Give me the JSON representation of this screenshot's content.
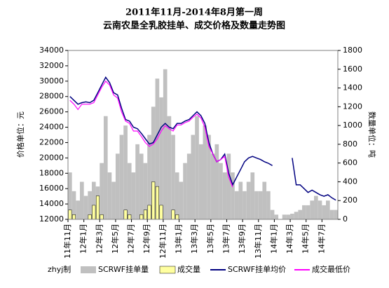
{
  "chart_data": {
    "type": "combo",
    "title": "2011年11月-2014年8月第一周",
    "subtitle": "云南农垦全乳胶挂单、成交价格及数量走势图",
    "y_label": "价格单位：元",
    "y2_label": "数量单位：吨",
    "credit": "zhyj制",
    "categories": [
      "11年11月",
      null,
      null,
      null,
      "12年1月",
      null,
      null,
      null,
      "12年3月",
      null,
      null,
      null,
      "12年5月",
      null,
      null,
      null,
      "12年7月",
      null,
      null,
      null,
      "12年9月",
      null,
      null,
      null,
      "12年11月",
      null,
      null,
      null,
      "13年1月",
      null,
      null,
      null,
      "13年3月",
      null,
      null,
      null,
      "13年5月",
      null,
      null,
      null,
      "13年7月",
      null,
      null,
      null,
      "13年9月",
      null,
      null,
      null,
      "13年11月",
      null,
      null,
      null,
      "14年1月",
      null,
      null,
      null,
      "14年3月",
      null,
      null,
      null,
      "14年5月",
      null,
      null,
      null,
      "14年7月",
      null,
      null,
      null
    ],
    "ylim": [
      12000,
      34000
    ],
    "yticks": [
      12000,
      14000,
      16000,
      18000,
      20000,
      22000,
      24000,
      26000,
      28000,
      30000,
      32000,
      34000
    ],
    "y2lim": [
      0,
      1800
    ],
    "y2ticks": [
      0,
      200,
      400,
      600,
      800,
      1000,
      1200,
      1400,
      1600,
      1800
    ],
    "series": [
      {
        "name": "SCRWF挂单量",
        "type": "bar",
        "axis": "y2",
        "color": "#c0c0c0",
        "values": [
          500,
          300,
          200,
          400,
          250,
          300,
          400,
          350,
          600,
          1100,
          500,
          400,
          700,
          900,
          1000,
          600,
          500,
          800,
          700,
          600,
          900,
          1200,
          1500,
          1300,
          1600,
          1100,
          900,
          500,
          400,
          600,
          700,
          900,
          1100,
          800,
          1000,
          900,
          700,
          800,
          600,
          500,
          700,
          500,
          300,
          400,
          300,
          400,
          500,
          300,
          300,
          400,
          300,
          100,
          50,
          0,
          50,
          50,
          60,
          80,
          100,
          150,
          150,
          200,
          250,
          200,
          150,
          200,
          100,
          100
        ]
      },
      {
        "name": "成交量",
        "type": "bar",
        "axis": "y2",
        "color": "#ffffa0",
        "values": [
          100,
          50,
          0,
          0,
          0,
          50,
          150,
          250,
          50,
          0,
          0,
          0,
          0,
          0,
          100,
          50,
          0,
          0,
          50,
          100,
          150,
          400,
          350,
          150,
          0,
          0,
          100,
          50,
          0,
          0,
          0,
          0,
          0,
          0,
          0,
          0,
          0,
          0,
          0,
          0,
          0,
          0,
          0,
          0,
          0,
          0,
          0,
          0,
          0,
          0,
          0,
          0,
          0,
          0,
          0,
          0,
          0,
          0,
          0,
          0,
          0,
          0,
          0,
          0,
          0,
          0,
          0,
          0
        ]
      },
      {
        "name": "SCRWF挂单均价",
        "type": "line",
        "color": "#000080",
        "values": [
          28000,
          27500,
          27000,
          27200,
          27300,
          27200,
          27500,
          28500,
          29500,
          30500,
          29800,
          28500,
          28200,
          26500,
          25000,
          24800,
          24000,
          23800,
          23200,
          22500,
          21800,
          22000,
          23000,
          24000,
          24500,
          24000,
          23800,
          24500,
          24500,
          24800,
          25000,
          25500,
          26000,
          25500,
          24500,
          22000,
          20500,
          19500,
          19800,
          20500,
          18000,
          16500,
          17500,
          18500,
          19500,
          20000,
          20200,
          20000,
          19800,
          19500,
          19300,
          19000,
          null,
          null,
          null,
          null,
          20000,
          16500,
          16500,
          16000,
          15500,
          15800,
          15500,
          15200,
          15000,
          15200,
          14800,
          14500
        ]
      },
      {
        "name": "成交最低价",
        "type": "line",
        "color": "#ff00ff",
        "values": [
          27500,
          27000,
          26300,
          27000,
          27000,
          27000,
          27200,
          28200,
          29200,
          30000,
          29500,
          28200,
          27800,
          26000,
          24800,
          24500,
          23500,
          23500,
          22800,
          22000,
          21500,
          21800,
          22500,
          23500,
          24200,
          23800,
          23500,
          24300,
          24300,
          24600,
          24800,
          25300,
          25700,
          25200,
          24000,
          21500,
          20500,
          19500,
          19800,
          20200,
          17500,
          16200,
          null,
          null,
          null,
          null,
          null,
          null,
          null,
          null,
          null,
          null,
          null,
          null,
          null,
          null,
          null,
          null,
          null,
          null,
          null,
          null,
          null,
          null,
          null,
          null,
          null,
          null
        ]
      }
    ]
  }
}
